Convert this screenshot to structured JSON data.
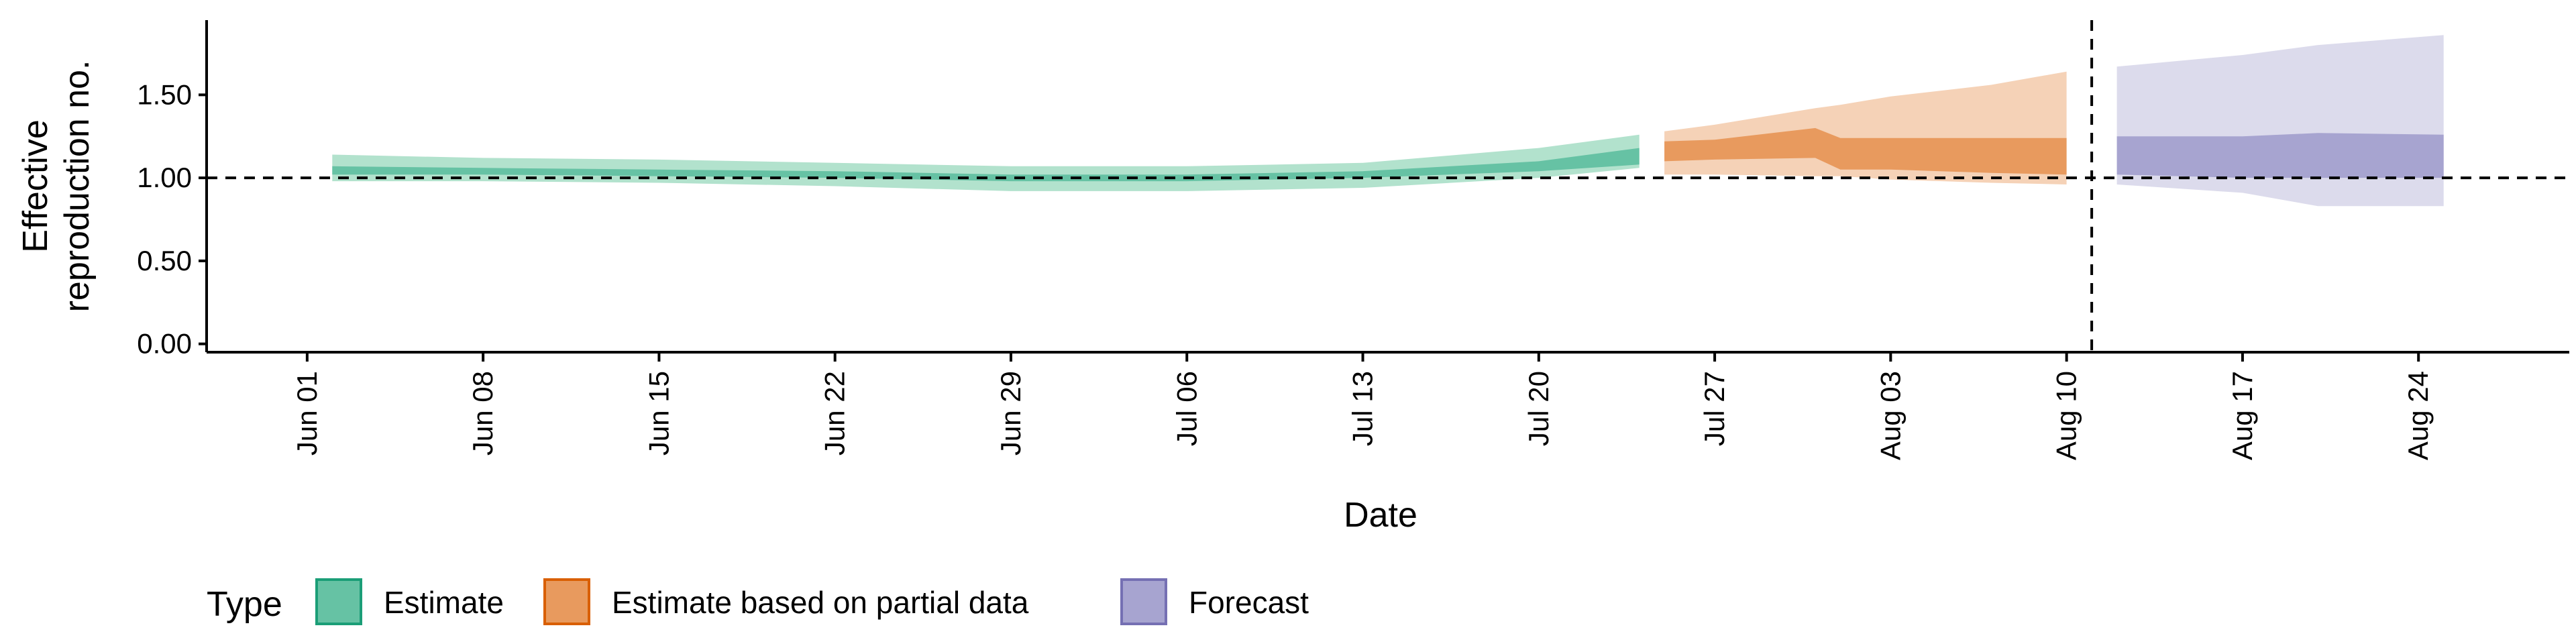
{
  "chart_data": {
    "type": "area",
    "xlabel": "Date",
    "ylabel": "Effective\nreproduction no.",
    "ylim": [
      -0.05,
      1.95
    ],
    "yticks": [
      0.0,
      0.5,
      1.0,
      1.5
    ],
    "ytick_labels": [
      "0.00",
      "0.50",
      "1.00",
      "1.50"
    ],
    "xlim": [
      "2020-05-28",
      "2020-08-30"
    ],
    "xticks": [
      "2020-06-01",
      "2020-06-08",
      "2020-06-15",
      "2020-06-22",
      "2020-06-29",
      "2020-07-06",
      "2020-07-13",
      "2020-07-20",
      "2020-07-27",
      "2020-08-03",
      "2020-08-10",
      "2020-08-17",
      "2020-08-24"
    ],
    "xtick_labels": [
      "Jun 01",
      "Jun 08",
      "Jun 15",
      "Jun 22",
      "Jun 29",
      "Jul 06",
      "Jul 13",
      "Jul 20",
      "Jul 27",
      "Aug 03",
      "Aug 10",
      "Aug 17",
      "Aug 24"
    ],
    "reference_line_y": 1.0,
    "vertical_line_x": "2020-08-11",
    "legend": {
      "title": "Type",
      "position": "bottom"
    },
    "series": [
      {
        "name": "Estimate",
        "color": "#1b9e77",
        "outer_fill": "#b2e2cd",
        "inner_fill": "#66c2a4",
        "points": [
          {
            "x": "2020-06-02",
            "lo90": 0.98,
            "lo50": 1.02,
            "hi50": 1.07,
            "hi90": 1.14
          },
          {
            "x": "2020-06-08",
            "lo90": 0.98,
            "lo50": 1.02,
            "hi50": 1.06,
            "hi90": 1.12
          },
          {
            "x": "2020-06-15",
            "lo90": 0.97,
            "lo50": 1.01,
            "hi50": 1.05,
            "hi90": 1.11
          },
          {
            "x": "2020-06-22",
            "lo90": 0.95,
            "lo50": 1.0,
            "hi50": 1.04,
            "hi90": 1.09
          },
          {
            "x": "2020-06-29",
            "lo90": 0.92,
            "lo50": 0.98,
            "hi50": 1.02,
            "hi90": 1.07
          },
          {
            "x": "2020-07-06",
            "lo90": 0.92,
            "lo50": 0.98,
            "hi50": 1.02,
            "hi90": 1.07
          },
          {
            "x": "2020-07-13",
            "lo90": 0.94,
            "lo50": 1.0,
            "hi50": 1.04,
            "hi90": 1.09
          },
          {
            "x": "2020-07-20",
            "lo90": 1.0,
            "lo50": 1.04,
            "hi50": 1.1,
            "hi90": 1.18
          },
          {
            "x": "2020-07-24",
            "lo90": 1.06,
            "lo50": 1.08,
            "hi50": 1.18,
            "hi90": 1.26
          }
        ]
      },
      {
        "name": "Estimate based on partial data",
        "color": "#d95f02",
        "outer_fill": "#f5d2b7",
        "inner_fill": "#e89a5e",
        "points": [
          {
            "x": "2020-07-25",
            "lo90": 1.02,
            "lo50": 1.1,
            "hi50": 1.22,
            "hi90": 1.28
          },
          {
            "x": "2020-07-27",
            "lo90": 1.02,
            "lo50": 1.11,
            "hi50": 1.23,
            "hi90": 1.32
          },
          {
            "x": "2020-07-31",
            "lo90": 1.01,
            "lo50": 1.12,
            "hi50": 1.3,
            "hi90": 1.42
          },
          {
            "x": "2020-08-01",
            "lo90": 1.01,
            "lo50": 1.05,
            "hi50": 1.24,
            "hi90": 1.44
          },
          {
            "x": "2020-08-03",
            "lo90": 0.99,
            "lo50": 1.05,
            "hi50": 1.24,
            "hi90": 1.49
          },
          {
            "x": "2020-08-07",
            "lo90": 0.97,
            "lo50": 1.03,
            "hi50": 1.24,
            "hi90": 1.56
          },
          {
            "x": "2020-08-10",
            "lo90": 0.96,
            "lo50": 1.02,
            "hi50": 1.24,
            "hi90": 1.64
          }
        ]
      },
      {
        "name": "Forecast",
        "color": "#7570b3",
        "outer_fill": "#dcdbec",
        "inner_fill": "#a7a4d0",
        "points": [
          {
            "x": "2020-08-12",
            "lo90": 0.96,
            "lo50": 1.02,
            "hi50": 1.25,
            "hi90": 1.67
          },
          {
            "x": "2020-08-17",
            "lo90": 0.91,
            "lo50": 1.0,
            "hi50": 1.25,
            "hi90": 1.74
          },
          {
            "x": "2020-08-20",
            "lo90": 0.83,
            "lo50": 1.0,
            "hi50": 1.27,
            "hi90": 1.8
          },
          {
            "x": "2020-08-25",
            "lo90": 0.83,
            "lo50": 1.0,
            "hi50": 1.26,
            "hi90": 1.86
          }
        ]
      }
    ]
  }
}
